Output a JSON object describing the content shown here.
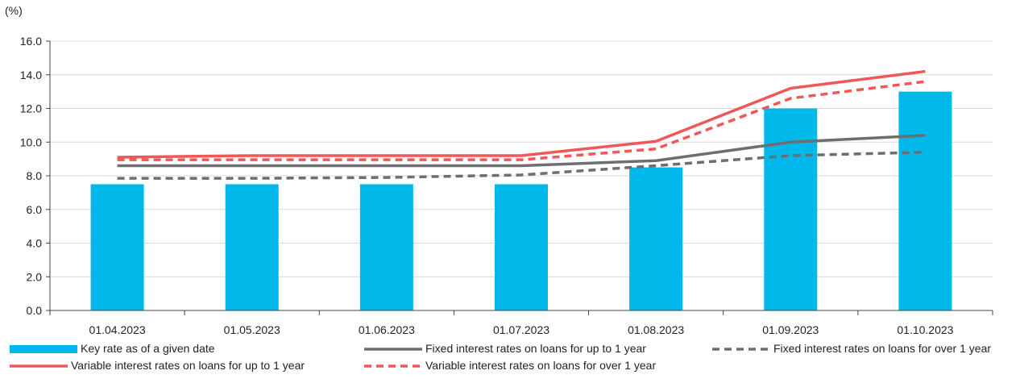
{
  "chart_data": {
    "type": "bar",
    "ylabel": "(%)",
    "ylim": [
      0,
      16
    ],
    "yticks": [
      "0.0",
      "2.0",
      "4.0",
      "6.0",
      "8.0",
      "10.0",
      "12.0",
      "14.0",
      "16.0"
    ],
    "categories": [
      "01.04.2023",
      "01.05.2023",
      "01.06.2023",
      "01.07.2023",
      "01.08.2023",
      "01.09.2023",
      "01.10.2023"
    ],
    "grid": true,
    "legend_position": "bottom",
    "series": [
      {
        "name": "Key rate as of a given date",
        "kind": "bar",
        "color": "#00B9EA",
        "style": "solid",
        "values": [
          7.5,
          7.5,
          7.5,
          7.5,
          8.5,
          12.0,
          13.0
        ]
      },
      {
        "name": "Fixed interest rates on loans for up to 1 year",
        "kind": "line",
        "color": "#6D6E70",
        "style": "solid",
        "values": [
          8.6,
          8.6,
          8.6,
          8.6,
          8.9,
          10.0,
          10.4
        ]
      },
      {
        "name": "Fixed interest rates on loans for over 1 year",
        "kind": "line",
        "color": "#6D6E70",
        "style": "dashed",
        "values": [
          7.85,
          7.85,
          7.9,
          8.05,
          8.6,
          9.2,
          9.4
        ]
      },
      {
        "name": "Variable interest rates on loans for up to 1 year",
        "kind": "line",
        "color": "#F25757",
        "style": "solid",
        "values": [
          9.1,
          9.2,
          9.2,
          9.2,
          10.05,
          13.2,
          14.2
        ]
      },
      {
        "name": "Variable interest rates on loans for over 1 year",
        "kind": "line",
        "color": "#F25757",
        "style": "dashed",
        "values": [
          8.95,
          8.95,
          8.95,
          8.95,
          9.6,
          12.6,
          13.6
        ]
      }
    ]
  }
}
